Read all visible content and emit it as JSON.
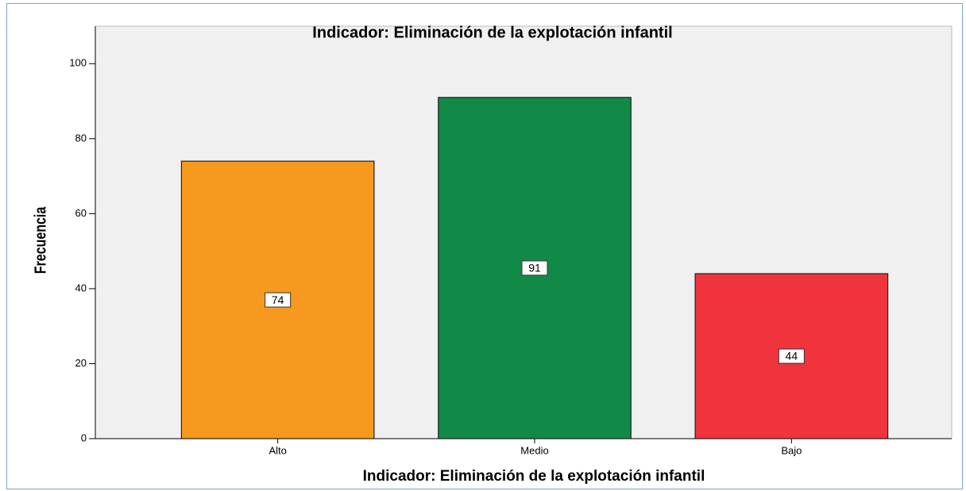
{
  "chart_data": {
    "type": "bar",
    "title": "Indicador: Eliminación de la explotación infantil",
    "x_label": "Indicador: Eliminación de la explotación infantil",
    "y_label": "Frecuencia",
    "categories": [
      "Alto",
      "Medio",
      "Bajo"
    ],
    "values": [
      74,
      91,
      44
    ],
    "colors": [
      "#f7991f",
      "#118a48",
      "#f0343c"
    ],
    "ylim": [
      0,
      110
    ],
    "yticks": [
      0,
      20,
      40,
      60,
      80,
      100
    ],
    "grid": false
  }
}
